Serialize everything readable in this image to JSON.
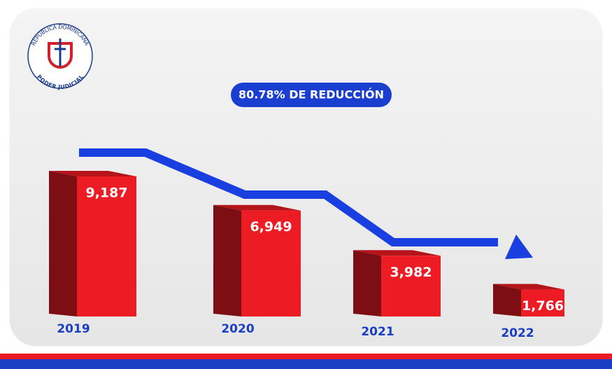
{
  "chart_data": {
    "type": "bar",
    "logo": {
      "top": "REPÚBLICA DOMINICANA",
      "bottom": "PODER JUDICIAL"
    },
    "annotation": "80.78% DE REDUCCIÓN",
    "categories": [
      "2019",
      "2020",
      "2021",
      "2022"
    ],
    "values": [
      9187,
      6949,
      3982,
      1766
    ],
    "value_labels": [
      "9,187",
      "6,949",
      "3,982",
      "1,766"
    ],
    "color": "#ed1c24"
  }
}
